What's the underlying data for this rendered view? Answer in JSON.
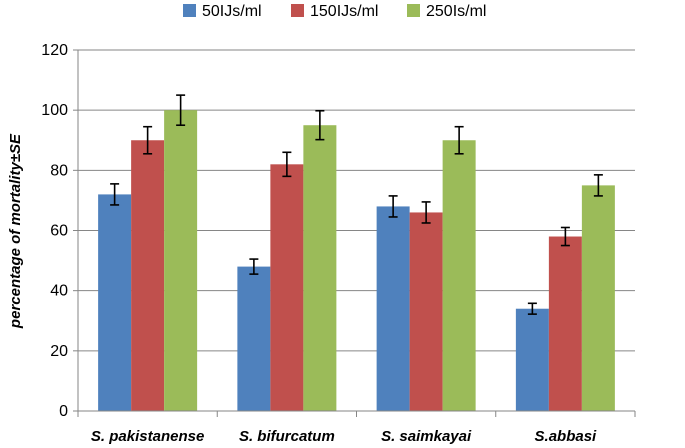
{
  "chart_data": {
    "type": "bar",
    "title": "",
    "xlabel": "",
    "ylabel": "percentage  of mortality±SE",
    "ylim": [
      0,
      120
    ],
    "yticks": [
      0,
      20,
      40,
      60,
      80,
      100,
      120
    ],
    "grid": true,
    "legend_position": "top",
    "categories": [
      "S. pakistanense",
      "S. bifurcatum",
      "S. saimkayai",
      "S.abbasi"
    ],
    "series": [
      {
        "name": "50IJs/ml",
        "color": "#4f81bd",
        "values": [
          72,
          48,
          68,
          34
        ],
        "errors": [
          3.5,
          2.5,
          3.5,
          1.8
        ]
      },
      {
        "name": "150IJs/ml",
        "color": "#c0504d",
        "values": [
          90,
          82,
          66,
          58
        ],
        "errors": [
          4.5,
          4,
          3.5,
          3
        ]
      },
      {
        "name": "250Is/ml",
        "color": "#9bbb59",
        "values": [
          100,
          95,
          90,
          75
        ],
        "errors": [
          5,
          4.8,
          4.5,
          3.5
        ]
      }
    ]
  }
}
